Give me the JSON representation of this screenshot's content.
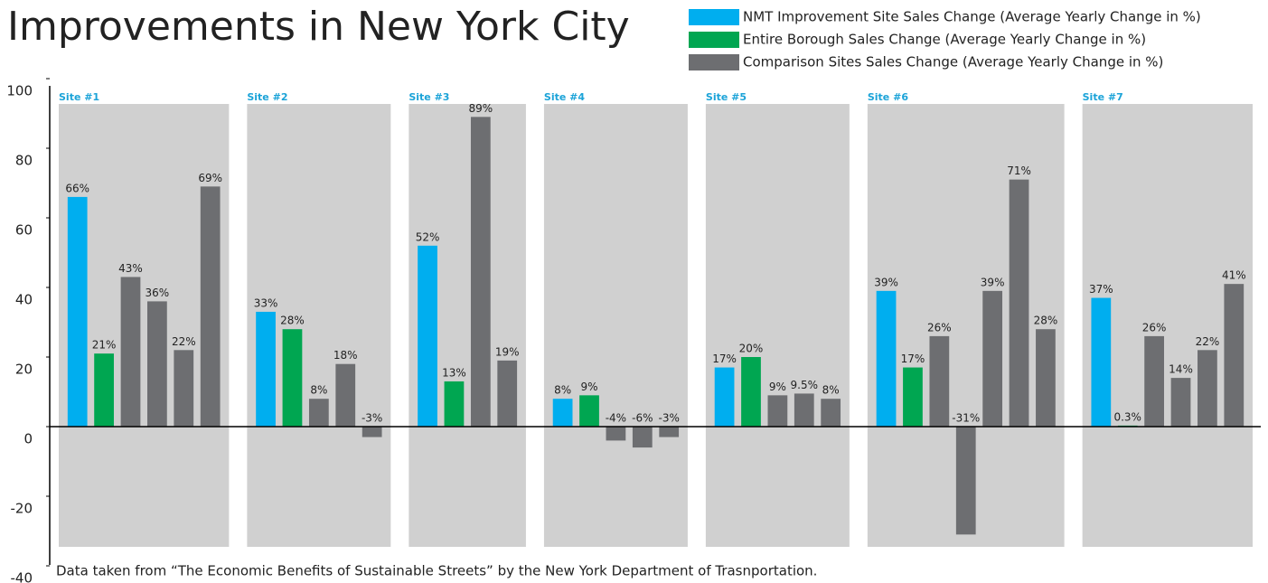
{
  "chart_data": {
    "type": "bar",
    "title": "Improvements in New York City",
    "footnote": "Data taken from “The Economic Benefits of Sustainable Streets” by the New York Department of Trasnportation.",
    "series": [
      {
        "name": "NMT Improvement Site Sales Change (Average Yearly Change in %)",
        "color": "#00aeef"
      },
      {
        "name": "Entire Borough Sales Change (Average Yearly Change in %)",
        "color": "#00a651"
      },
      {
        "name": "Comparison Sites Sales Change (Average Yearly Change in %)",
        "color": "#6d6e71"
      }
    ],
    "groups": [
      {
        "name": "Site #1",
        "values": [
          [
            66
          ],
          [
            21
          ],
          [
            43,
            36,
            22,
            69
          ]
        ],
        "value_labels": [
          [
            "66%"
          ],
          [
            "21%"
          ],
          [
            "43%",
            "36%",
            "22%",
            "69%"
          ]
        ]
      },
      {
        "name": "Site #2",
        "values": [
          [
            33
          ],
          [
            28
          ],
          [
            8,
            18,
            -3
          ]
        ],
        "value_labels": [
          [
            "33%"
          ],
          [
            "28%"
          ],
          [
            "8%",
            "18%",
            "-3%"
          ]
        ]
      },
      {
        "name": "Site #3",
        "values": [
          [
            52
          ],
          [
            13
          ],
          [
            89,
            19
          ]
        ],
        "value_labels": [
          [
            "52%"
          ],
          [
            "13%"
          ],
          [
            "89%",
            "19%"
          ]
        ]
      },
      {
        "name": "Site #4",
        "values": [
          [
            8
          ],
          [
            9
          ],
          [
            -4,
            -6,
            -3
          ]
        ],
        "value_labels": [
          [
            "8%"
          ],
          [
            "9%"
          ],
          [
            "-4%",
            "-6%",
            "-3%"
          ]
        ]
      },
      {
        "name": "Site #5",
        "values": [
          [
            17
          ],
          [
            20
          ],
          [
            9,
            9.5,
            8
          ]
        ],
        "value_labels": [
          [
            "17%"
          ],
          [
            "20%"
          ],
          [
            "9%",
            "9.5%",
            "8%"
          ]
        ]
      },
      {
        "name": "Site #6",
        "values": [
          [
            39
          ],
          [
            17
          ],
          [
            26,
            -31,
            39,
            71,
            28
          ]
        ],
        "value_labels": [
          [
            "39%"
          ],
          [
            "17%"
          ],
          [
            "26%",
            "-31%",
            "39%",
            "71%",
            "28%"
          ]
        ]
      },
      {
        "name": "Site #7",
        "values": [
          [
            37
          ],
          [
            0.3
          ],
          [
            26,
            14,
            22,
            41
          ]
        ],
        "value_labels": [
          [
            "37%"
          ],
          [
            "0.3%"
          ],
          [
            "26%",
            "14%",
            "22%",
            "41%"
          ]
        ]
      }
    ],
    "ylim": [
      -40,
      100
    ],
    "yticks": [
      -40,
      -20,
      0,
      20,
      40,
      60,
      80,
      100
    ]
  }
}
